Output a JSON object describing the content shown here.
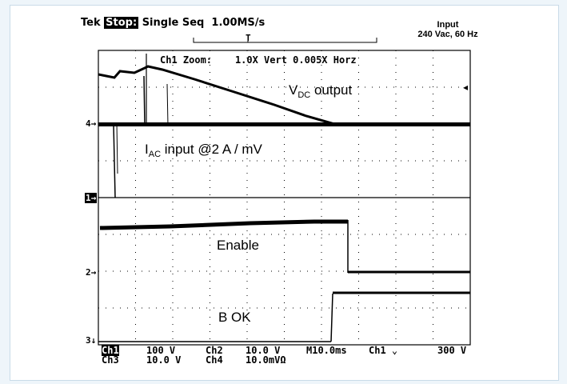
{
  "header": {
    "brand": "Tek",
    "stop": "Stop:",
    "mode": "Single Seq",
    "rate": "1.00MS/s",
    "trigger_marker": "T"
  },
  "input_label": {
    "line1": "Input",
    "line2": "240 Vac, 60 Hz"
  },
  "zoom_text": {
    "label": "Ch1 Zoom:",
    "value": "1.0X Vert 0.005X Horz"
  },
  "annotations": {
    "vdc_main": "V",
    "vdc_sub": "DC",
    "vdc_rest": " output",
    "iac_main": "I",
    "iac_sub": "AC",
    "iac_rest": " input @2 A / mV",
    "enable": "Enable",
    "bok": "B OK"
  },
  "markers": {
    "ch4": "4→",
    "ch1": "1→",
    "ch2": "2→",
    "ch3": "3↓"
  },
  "bottom": {
    "r1": {
      "ch": "Ch1",
      "v1": "100 V",
      "ch2": "Ch2",
      "v2": "10.0 V",
      "time": "M10.0ms",
      "trig": "Ch1 ⌄",
      "lvl": "300 V"
    },
    "r2": {
      "ch": "Ch3",
      "v1": "10.0 V",
      "ch2": "Ch4",
      "v2": "10.0mVΩ"
    }
  },
  "colors": {
    "background": "#eef5fa",
    "panel": "#ffffff",
    "trace": "#000000"
  }
}
